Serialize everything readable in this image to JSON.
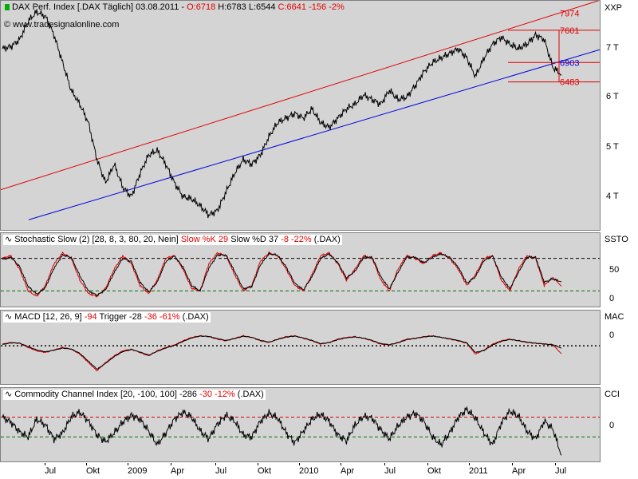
{
  "chart_data": [
    {
      "type": "line",
      "title": "DAX Perf. Index [.DAX  Täglich] 03.08.2011",
      "ohlc": {
        "open": "O:6718",
        "high": "H:6783",
        "low": "L:6544",
        "close": "C:6641",
        "change": "-156",
        "change_pct": "-2%"
      },
      "watermark": "www.tradesignalonline.com",
      "axis_label": "XXP",
      "ylim": [
        3400,
        8100
      ],
      "y_ticks": [
        {
          "value": 4000,
          "label": "4 T"
        },
        {
          "value": 5000,
          "label": "5 T"
        },
        {
          "value": 6000,
          "label": "6 T"
        },
        {
          "value": 7000,
          "label": "7 T"
        }
      ],
      "price_labels": [
        {
          "value": 7974,
          "label": "7974",
          "color": "#e00000"
        },
        {
          "value": 7601,
          "label": "7601",
          "color": "#e00000"
        },
        {
          "value": 6903,
          "label": "6903",
          "color": "#0000e0"
        },
        {
          "value": 6483,
          "label": "6483",
          "color": "#e00000"
        }
      ],
      "series": [
        {
          "values": [
            7200,
            7250,
            7400,
            7800,
            8000,
            7900,
            7500,
            6900,
            6300,
            6000,
            5600,
            4800,
            4300,
            4700,
            4200,
            4000,
            4500,
            4900,
            5000,
            4700,
            4300,
            4000,
            3950,
            3800,
            3600,
            3700,
            4100,
            4500,
            4800,
            4700,
            4900,
            5300,
            5600,
            5700,
            5800,
            5700,
            5900,
            5600,
            5500,
            5700,
            5900,
            6000,
            6200,
            6100,
            6000,
            6300,
            6100,
            6150,
            6400,
            6700,
            6900,
            7000,
            7100,
            7200,
            7000,
            6600,
            7000,
            7300,
            7450,
            7300,
            7200,
            7300,
            7500,
            7400,
            6800,
            6641
          ],
          "color": "#000000"
        }
      ],
      "channel_top": {
        "color": "#e00000"
      },
      "channel_bottom": {
        "color": "#0000e0"
      }
    },
    {
      "type": "line",
      "title": "Stochastic Slow",
      "params": "(2)   [28, 8, 3, 80, 20, Nein]",
      "legend": [
        {
          "text": "Slow %K 29",
          "color": "#e00000"
        },
        {
          "text": "Slow %D 37",
          "color": "#000000"
        },
        {
          "text": "-8 -22%",
          "color": "#e00000"
        },
        {
          "text": "(.DAX)",
          "color": "#000000"
        }
      ],
      "axis_label": "SSTO",
      "ylim": [
        0,
        100
      ],
      "y_ticks": [
        {
          "value": 0,
          "label": "0"
        },
        {
          "value": 50,
          "label": "50"
        }
      ],
      "levels": [
        80,
        20
      ],
      "series": [
        {
          "name": "Slow %K",
          "values": [
            80,
            85,
            60,
            20,
            10,
            30,
            70,
            90,
            80,
            40,
            15,
            10,
            25,
            60,
            85,
            70,
            30,
            15,
            40,
            80,
            85,
            60,
            25,
            20,
            70,
            90,
            85,
            50,
            20,
            30,
            75,
            90,
            85,
            60,
            30,
            20,
            50,
            85,
            90,
            70,
            40,
            60,
            85,
            80,
            40,
            20,
            60,
            85,
            80,
            70,
            85,
            90,
            80,
            60,
            30,
            50,
            80,
            85,
            40,
            20,
            60,
            85,
            80,
            30,
            45,
            29
          ],
          "color": "#e00000"
        },
        {
          "name": "Slow %D",
          "values": [
            78,
            82,
            65,
            28,
            14,
            26,
            62,
            86,
            82,
            48,
            20,
            12,
            22,
            54,
            80,
            74,
            36,
            18,
            36,
            74,
            84,
            64,
            30,
            20,
            62,
            86,
            86,
            56,
            24,
            28,
            68,
            88,
            86,
            64,
            34,
            22,
            46,
            80,
            88,
            72,
            44,
            56,
            82,
            82,
            46,
            24,
            54,
            82,
            82,
            72,
            82,
            88,
            82,
            64,
            34,
            46,
            76,
            84,
            46,
            24,
            54,
            82,
            82,
            36,
            42,
            37
          ],
          "color": "#000000"
        }
      ]
    },
    {
      "type": "line",
      "title": "MACD",
      "params": "[12, 26, 9]",
      "legend": [
        {
          "text": "-94",
          "color": "#e00000"
        },
        {
          "text": "Trigger -28",
          "color": "#000000"
        },
        {
          "text": "-36 -61%",
          "color": "#e00000"
        },
        {
          "text": "(.DAX)",
          "color": "#000000"
        }
      ],
      "axis_label": "MAC",
      "ylim": [
        -400,
        250
      ],
      "y_ticks": [
        {
          "value": 0,
          "label": "0"
        }
      ],
      "series": [
        {
          "name": "MACD",
          "values": [
            20,
            40,
            30,
            -20,
            -60,
            -80,
            -50,
            -20,
            -40,
            -100,
            -200,
            -300,
            -200,
            -120,
            -60,
            -40,
            -80,
            -120,
            -60,
            -20,
            10,
            60,
            100,
            120,
            110,
            80,
            60,
            90,
            120,
            100,
            60,
            40,
            80,
            110,
            120,
            90,
            60,
            20,
            40,
            80,
            100,
            110,
            90,
            60,
            20,
            10,
            40,
            80,
            90,
            110,
            120,
            100,
            80,
            60,
            30,
            -100,
            -50,
            20,
            60,
            80,
            60,
            40,
            30,
            20,
            10,
            -94
          ],
          "color": "#e00000"
        },
        {
          "name": "Trigger",
          "values": [
            15,
            35,
            32,
            -10,
            -50,
            -72,
            -52,
            -28,
            -38,
            -90,
            -185,
            -280,
            -210,
            -130,
            -70,
            -45,
            -75,
            -112,
            -66,
            -26,
            4,
            52,
            94,
            116,
            112,
            86,
            64,
            86,
            114,
            102,
            66,
            44,
            76,
            104,
            116,
            94,
            64,
            26,
            38,
            74,
            96,
            106,
            92,
            64,
            26,
            14,
            36,
            74,
            88,
            106,
            116,
            102,
            84,
            64,
            36,
            -80,
            -56,
            10,
            54,
            76,
            62,
            44,
            32,
            22,
            14,
            -28
          ],
          "color": "#000000"
        }
      ]
    },
    {
      "type": "line",
      "title": "Commodity Channel Index",
      "params": "[20, -100, 100]",
      "legend": [
        {
          "text": "-286",
          "color": "#000000"
        },
        {
          "text": "-30 -12%",
          "color": "#e00000"
        },
        {
          "text": "(.DAX)",
          "color": "#000000"
        }
      ],
      "axis_label": "CCI",
      "ylim": [
        -300,
        250
      ],
      "y_ticks": [
        {
          "value": 0,
          "label": "0"
        }
      ],
      "levels": [
        100,
        -100
      ],
      "series": [
        {
          "name": "CCI",
          "values": [
            100,
            50,
            -50,
            -100,
            80,
            20,
            -120,
            -60,
            100,
            150,
            60,
            -80,
            -150,
            -60,
            50,
            120,
            80,
            -40,
            -180,
            -60,
            80,
            150,
            100,
            -40,
            -120,
            30,
            120,
            60,
            -80,
            -100,
            60,
            140,
            90,
            -60,
            -160,
            -40,
            80,
            130,
            60,
            -80,
            -140,
            20,
            110,
            90,
            -30,
            -120,
            10,
            100,
            140,
            60,
            -100,
            -180,
            -60,
            100,
            180,
            90,
            -60,
            -180,
            40,
            160,
            110,
            -40,
            -120,
            60,
            -20,
            -286
          ],
          "color": "#000000"
        }
      ]
    }
  ],
  "x_axis": {
    "labels": [
      "Jul",
      "Okt",
      "2009",
      "Apr",
      "Jul",
      "Okt",
      "2010",
      "Apr",
      "Jul",
      "Okt",
      "2011",
      "Apr",
      "Jul"
    ]
  }
}
